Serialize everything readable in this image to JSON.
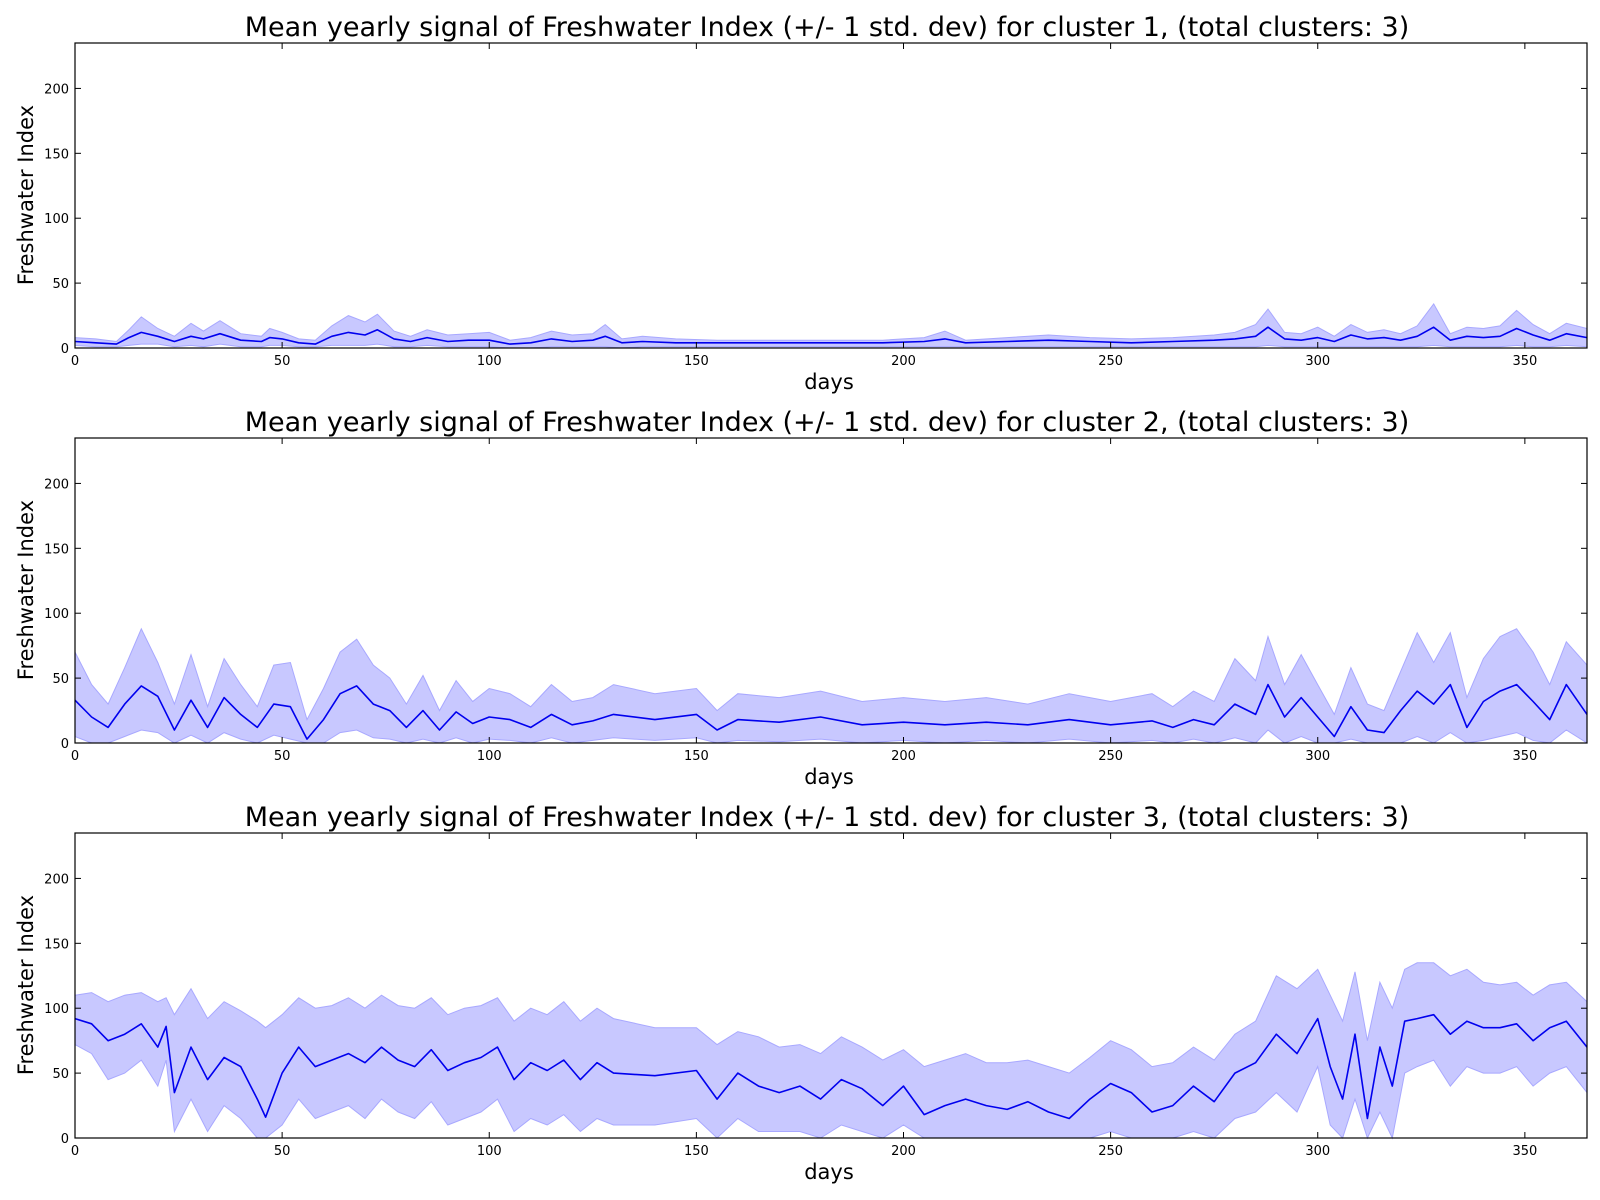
{
  "chart_data": [
    {
      "type": "area",
      "title": "Mean yearly signal of Freshwater Index (+/- 1 std. dev) for cluster 1, (total clusters: 3)",
      "xlabel": "days",
      "ylabel": "Freshwater Index",
      "xlim": [
        0,
        365
      ],
      "ylim": [
        0,
        235
      ],
      "xticks": [
        0,
        50,
        100,
        150,
        200,
        250,
        300,
        350
      ],
      "yticks": [
        0,
        50,
        100,
        150,
        200
      ],
      "grid": false,
      "line_color": "#0000ee",
      "band_color": "#c8c8ff",
      "x": [
        0,
        5,
        10,
        13,
        16,
        20,
        24,
        28,
        31,
        35,
        40,
        45,
        47,
        50,
        54,
        58,
        62,
        66,
        70,
        73,
        77,
        81,
        85,
        90,
        95,
        100,
        105,
        110,
        115,
        120,
        125,
        128,
        132,
        137,
        145,
        155,
        165,
        175,
        185,
        195,
        205,
        210,
        215,
        225,
        235,
        245,
        255,
        265,
        275,
        280,
        285,
        288,
        292,
        296,
        300,
        304,
        308,
        312,
        316,
        320,
        324,
        328,
        332,
        336,
        340,
        344,
        348,
        352,
        356,
        360,
        365
      ],
      "series": [
        {
          "name": "mean",
          "values": [
            5,
            4,
            3,
            8,
            12,
            9,
            5,
            9,
            7,
            11,
            6,
            5,
            8,
            7,
            4,
            3,
            9,
            12,
            10,
            14,
            7,
            5,
            8,
            5,
            6,
            6,
            3,
            4,
            7,
            5,
            6,
            9,
            4,
            5,
            4,
            4,
            4,
            4,
            4,
            4,
            5,
            7,
            4,
            5,
            6,
            5,
            4,
            5,
            6,
            7,
            9,
            16,
            7,
            6,
            8,
            5,
            10,
            7,
            8,
            6,
            9,
            16,
            6,
            9,
            8,
            9,
            15,
            10,
            6,
            11,
            8
          ]
        },
        {
          "name": "upper",
          "values": [
            8,
            7,
            5,
            14,
            24,
            15,
            9,
            19,
            13,
            21,
            11,
            9,
            15,
            12,
            7,
            6,
            17,
            25,
            20,
            26,
            13,
            9,
            14,
            10,
            11,
            12,
            6,
            8,
            13,
            10,
            11,
            18,
            7,
            9,
            7,
            6,
            6,
            6,
            6,
            6,
            8,
            13,
            6,
            8,
            10,
            8,
            7,
            8,
            10,
            12,
            18,
            30,
            12,
            11,
            16,
            9,
            18,
            12,
            14,
            11,
            17,
            34,
            11,
            16,
            15,
            17,
            29,
            18,
            11,
            19,
            15
          ]
        },
        {
          "name": "lower",
          "values": [
            2,
            1,
            1,
            2,
            3,
            3,
            1,
            2,
            1,
            3,
            1,
            1,
            2,
            2,
            1,
            1,
            2,
            2,
            2,
            3,
            1,
            1,
            2,
            1,
            1,
            1,
            0,
            0,
            1,
            1,
            1,
            1,
            0,
            1,
            1,
            1,
            1,
            1,
            1,
            1,
            1,
            1,
            1,
            1,
            1,
            1,
            1,
            1,
            1,
            1,
            1,
            2,
            1,
            1,
            1,
            1,
            1,
            1,
            1,
            1,
            1,
            2,
            1,
            1,
            1,
            1,
            2,
            1,
            1,
            2,
            1
          ]
        }
      ]
    },
    {
      "type": "area",
      "title": "Mean yearly signal of Freshwater Index (+/- 1 std. dev) for cluster 2, (total clusters: 3)",
      "xlabel": "days",
      "ylabel": "Freshwater Index",
      "xlim": [
        0,
        365
      ],
      "ylim": [
        0,
        235
      ],
      "xticks": [
        0,
        50,
        100,
        150,
        200,
        250,
        300,
        350
      ],
      "yticks": [
        0,
        50,
        100,
        150,
        200
      ],
      "grid": false,
      "line_color": "#0000ee",
      "band_color": "#c8c8ff",
      "x": [
        0,
        4,
        8,
        12,
        16,
        20,
        24,
        28,
        32,
        36,
        40,
        44,
        48,
        52,
        56,
        60,
        64,
        68,
        72,
        76,
        80,
        84,
        88,
        92,
        96,
        100,
        105,
        110,
        115,
        120,
        125,
        130,
        140,
        150,
        155,
        160,
        170,
        180,
        190,
        200,
        210,
        220,
        230,
        240,
        250,
        260,
        265,
        270,
        275,
        280,
        285,
        288,
        292,
        296,
        300,
        304,
        308,
        312,
        316,
        320,
        324,
        328,
        332,
        336,
        340,
        344,
        348,
        352,
        356,
        360,
        365
      ],
      "series": [
        {
          "name": "mean",
          "values": [
            33,
            20,
            12,
            30,
            44,
            36,
            10,
            33,
            12,
            35,
            22,
            12,
            30,
            28,
            3,
            18,
            38,
            44,
            30,
            25,
            12,
            25,
            10,
            24,
            15,
            20,
            18,
            12,
            22,
            14,
            17,
            22,
            18,
            22,
            10,
            18,
            16,
            20,
            14,
            16,
            14,
            16,
            14,
            18,
            14,
            17,
            12,
            18,
            14,
            30,
            22,
            45,
            20,
            35,
            20,
            5,
            28,
            10,
            8,
            25,
            40,
            30,
            45,
            12,
            32,
            40,
            45,
            32,
            18,
            45,
            22
          ]
        },
        {
          "name": "upper",
          "values": [
            70,
            45,
            30,
            58,
            88,
            62,
            30,
            68,
            28,
            65,
            45,
            28,
            60,
            62,
            18,
            42,
            70,
            80,
            60,
            50,
            30,
            52,
            25,
            48,
            32,
            42,
            38,
            28,
            45,
            32,
            35,
            45,
            38,
            42,
            25,
            38,
            35,
            40,
            32,
            35,
            32,
            35,
            30,
            38,
            32,
            38,
            28,
            40,
            32,
            65,
            48,
            82,
            45,
            68,
            45,
            22,
            58,
            30,
            25,
            55,
            85,
            62,
            85,
            35,
            65,
            82,
            88,
            70,
            45,
            78,
            60
          ]
        },
        {
          "name": "lower",
          "values": [
            5,
            0,
            0,
            5,
            10,
            8,
            0,
            6,
            0,
            8,
            3,
            0,
            6,
            3,
            0,
            0,
            8,
            10,
            4,
            3,
            0,
            3,
            0,
            4,
            0,
            3,
            2,
            0,
            4,
            0,
            2,
            4,
            2,
            4,
            0,
            2,
            1,
            3,
            0,
            2,
            0,
            2,
            0,
            3,
            0,
            2,
            0,
            3,
            0,
            4,
            0,
            10,
            0,
            5,
            0,
            0,
            3,
            0,
            0,
            0,
            5,
            0,
            8,
            0,
            2,
            5,
            8,
            2,
            0,
            10,
            0
          ]
        }
      ]
    },
    {
      "type": "area",
      "title": "Mean yearly signal of Freshwater Index (+/- 1 std. dev) for cluster 3, (total clusters: 3)",
      "xlabel": "days",
      "ylabel": "Freshwater Index",
      "xlim": [
        0,
        365
      ],
      "ylim": [
        0,
        235
      ],
      "xticks": [
        0,
        50,
        100,
        150,
        200,
        250,
        300,
        350
      ],
      "yticks": [
        0,
        50,
        100,
        150,
        200
      ],
      "grid": false,
      "line_color": "#0000ee",
      "band_color": "#c8c8ff",
      "x": [
        0,
        4,
        8,
        12,
        16,
        20,
        22,
        24,
        28,
        32,
        36,
        40,
        44,
        46,
        50,
        54,
        58,
        62,
        66,
        70,
        74,
        78,
        82,
        86,
        90,
        94,
        98,
        102,
        106,
        110,
        114,
        118,
        122,
        126,
        130,
        140,
        150,
        155,
        160,
        165,
        170,
        175,
        180,
        185,
        190,
        195,
        200,
        205,
        210,
        215,
        220,
        225,
        230,
        235,
        240,
        245,
        250,
        255,
        260,
        265,
        270,
        275,
        280,
        285,
        290,
        295,
        300,
        303,
        306,
        309,
        312,
        315,
        318,
        321,
        324,
        328,
        332,
        336,
        340,
        344,
        348,
        352,
        356,
        360,
        365
      ],
      "series": [
        {
          "name": "mean",
          "values": [
            92,
            88,
            75,
            80,
            88,
            70,
            86,
            35,
            70,
            45,
            62,
            55,
            30,
            16,
            50,
            70,
            55,
            60,
            65,
            58,
            70,
            60,
            55,
            68,
            52,
            58,
            62,
            70,
            45,
            58,
            52,
            60,
            45,
            58,
            50,
            48,
            52,
            30,
            50,
            40,
            35,
            40,
            30,
            45,
            38,
            25,
            40,
            18,
            25,
            30,
            25,
            22,
            28,
            20,
            15,
            30,
            42,
            35,
            20,
            25,
            40,
            28,
            50,
            58,
            80,
            65,
            92,
            55,
            30,
            80,
            15,
            70,
            40,
            90,
            92,
            95,
            80,
            90,
            85,
            85,
            88,
            75,
            85,
            90,
            70
          ]
        },
        {
          "name": "upper",
          "values": [
            110,
            112,
            105,
            110,
            112,
            105,
            108,
            95,
            115,
            92,
            105,
            98,
            90,
            85,
            95,
            108,
            100,
            102,
            108,
            100,
            110,
            102,
            100,
            108,
            95,
            100,
            102,
            108,
            90,
            100,
            95,
            105,
            90,
            100,
            92,
            85,
            85,
            72,
            82,
            78,
            70,
            72,
            65,
            78,
            70,
            60,
            68,
            55,
            60,
            65,
            58,
            58,
            60,
            55,
            50,
            62,
            75,
            68,
            55,
            58,
            70,
            60,
            80,
            90,
            125,
            115,
            130,
            110,
            90,
            128,
            75,
            120,
            100,
            130,
            135,
            135,
            125,
            130,
            120,
            118,
            120,
            110,
            118,
            120,
            105
          ]
        },
        {
          "name": "lower",
          "values": [
            72,
            65,
            45,
            50,
            60,
            40,
            60,
            5,
            30,
            5,
            25,
            15,
            0,
            0,
            10,
            30,
            15,
            20,
            25,
            15,
            30,
            20,
            15,
            28,
            10,
            15,
            20,
            30,
            5,
            15,
            10,
            18,
            5,
            15,
            10,
            10,
            15,
            0,
            15,
            5,
            5,
            5,
            0,
            10,
            5,
            0,
            10,
            0,
            0,
            0,
            0,
            0,
            0,
            0,
            0,
            0,
            5,
            0,
            0,
            0,
            5,
            0,
            15,
            20,
            35,
            20,
            55,
            10,
            0,
            30,
            0,
            20,
            0,
            50,
            55,
            60,
            40,
            55,
            50,
            50,
            55,
            40,
            50,
            55,
            35
          ]
        }
      ]
    }
  ]
}
